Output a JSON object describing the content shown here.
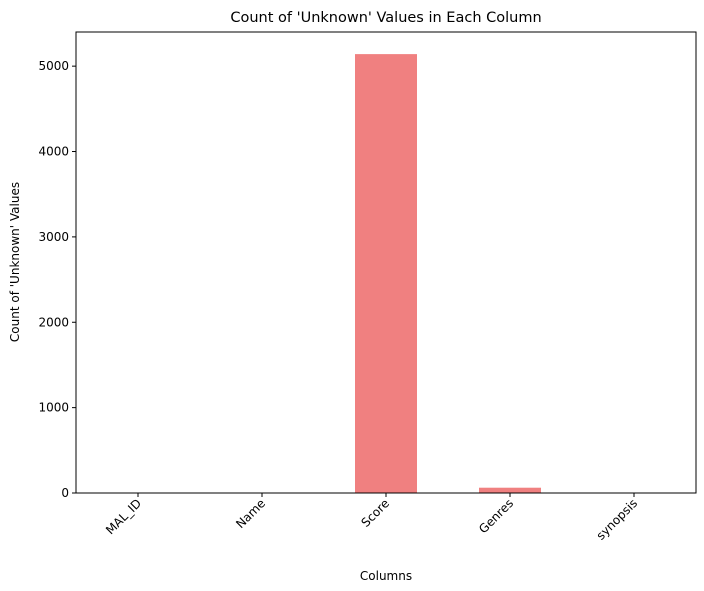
{
  "chart_data": {
    "type": "bar",
    "title": "Count of 'Unknown' Values in Each Column",
    "xlabel": "Columns",
    "ylabel": "Count of 'Unknown' Values",
    "categories": [
      "MAL_ID",
      "Name",
      "Score",
      "Genres",
      "synopsis"
    ],
    "values": [
      0,
      0,
      5141,
      62,
      0
    ],
    "ylim": [
      0,
      5400
    ],
    "yticks": [
      0,
      1000,
      2000,
      3000,
      4000,
      5000
    ],
    "bar_color": "#f08080",
    "grid": false,
    "legend": "none",
    "xtick_rotation": 45
  }
}
